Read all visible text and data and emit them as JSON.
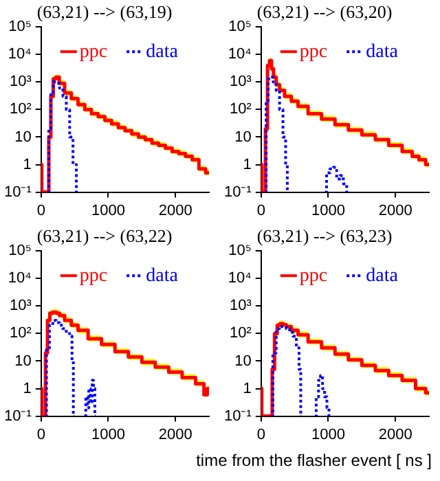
{
  "chart_data": [
    {
      "type": "step",
      "title": "(63,21) --> (63,19)",
      "xlim": [
        0,
        2500
      ],
      "xticks": [
        0,
        1000,
        2000
      ],
      "ylim": [
        0.1,
        100000
      ],
      "log": true,
      "yticks": [
        {
          "value": 0.1,
          "label": "10⁻¹"
        },
        {
          "value": 1,
          "label": "1"
        },
        {
          "value": 10,
          "label": "10"
        },
        {
          "value": 100,
          "label": "10²"
        },
        {
          "value": 1000,
          "label": "10³"
        },
        {
          "value": 10000,
          "label": "10⁴"
        },
        {
          "value": 100000,
          "label": "10⁵"
        }
      ],
      "grid": false,
      "legend": "top right",
      "marker": "none",
      "series": [
        {
          "name": "ppc",
          "color": "#ff0000",
          "line_style": "solid",
          "x": [
            0,
            20,
            100,
            130,
            160,
            200,
            240,
            300,
            400,
            500,
            600,
            700,
            800,
            900,
            1000,
            1100,
            1200,
            1300,
            1400,
            1500,
            1600,
            1700,
            1800,
            1900,
            2000,
            2100,
            2200,
            2300,
            2400,
            2500
          ],
          "values": [
            1,
            0.1,
            0.1,
            10,
            300,
            1300,
            1500,
            900,
            400,
            250,
            150,
            100,
            70,
            55,
            40,
            30,
            22,
            17,
            13,
            10,
            8,
            6,
            5,
            4,
            3,
            2.5,
            2,
            1.5,
            0.7,
            0.5
          ],
          "upper": [
            1,
            0.1,
            0.1,
            13,
            400,
            1700,
            1900,
            1200,
            520,
            330,
            200,
            130,
            90,
            70,
            52,
            40,
            29,
            22,
            17,
            13,
            10,
            8,
            6.5,
            5,
            4,
            3.3,
            2.6,
            2,
            0.9,
            0.7
          ],
          "lower": [
            1,
            0.1,
            0.1,
            8,
            240,
            1000,
            1200,
            720,
            320,
            200,
            120,
            80,
            56,
            44,
            32,
            24,
            18,
            14,
            10,
            8,
            6.4,
            4.8,
            4,
            3.2,
            2.4,
            2,
            1.6,
            1.2,
            0.56,
            0.4
          ]
        },
        {
          "name": "data",
          "color": "#0000ff",
          "line_style": "dotted",
          "x": [
            100,
            130,
            160,
            200,
            250,
            300,
            350,
            400,
            450,
            500,
            550
          ],
          "values": [
            0.1,
            20,
            400,
            1000,
            900,
            600,
            300,
            100,
            10,
            1,
            0.1
          ]
        }
      ]
    },
    {
      "type": "step",
      "title": "(63,21) --> (63,20)",
      "xlim": [
        0,
        2500
      ],
      "xticks": [
        0,
        1000,
        2000
      ],
      "ylim": [
        0.1,
        100000
      ],
      "log": true,
      "yticks": [
        {
          "value": 0.1,
          "label": "10⁻¹"
        },
        {
          "value": 1,
          "label": "1"
        },
        {
          "value": 10,
          "label": "10"
        },
        {
          "value": 100,
          "label": "10²"
        },
        {
          "value": 1000,
          "label": "10³"
        },
        {
          "value": 10000,
          "label": "10⁴"
        },
        {
          "value": 100000,
          "label": "10⁵"
        }
      ],
      "grid": false,
      "legend": "top right",
      "marker": "none",
      "series": [
        {
          "name": "ppc",
          "color": "#ff0000",
          "line_style": "solid",
          "x": [
            0,
            20,
            50,
            80,
            110,
            140,
            170,
            200,
            250,
            300,
            400,
            500,
            600,
            800,
            1000,
            1200,
            1400,
            1600,
            1800,
            2000,
            2200,
            2300,
            2400,
            2500
          ],
          "values": [
            1,
            0.1,
            0.1,
            20,
            4000,
            6000,
            3000,
            1500,
            800,
            500,
            300,
            200,
            130,
            70,
            45,
            28,
            18,
            12,
            8,
            5,
            3,
            2,
            1.5,
            1
          ],
          "upper": [
            1,
            0.1,
            0.1,
            26,
            5200,
            7800,
            3900,
            2000,
            1050,
            650,
            400,
            260,
            170,
            90,
            60,
            36,
            23,
            16,
            10,
            6.5,
            4,
            2.6,
            2,
            1.3
          ],
          "lower": [
            1,
            0.1,
            0.1,
            16,
            3200,
            4800,
            2400,
            1200,
            640,
            400,
            240,
            160,
            100,
            56,
            36,
            22,
            14,
            10,
            6.4,
            4,
            2.4,
            1.6,
            1.2,
            0.8
          ]
        },
        {
          "name": "data",
          "color": "#0000ff",
          "line_style": "dotted",
          "x": [
            60,
            90,
            120,
            160,
            200,
            250,
            300,
            350,
            380,
            400,
            700,
            950,
            1000,
            1050,
            1100,
            1150,
            1200,
            1250,
            1300
          ],
          "values": [
            0.1,
            200,
            1300,
            1500,
            1000,
            500,
            100,
            10,
            1,
            0.1,
            null,
            0.1,
            0.5,
            0.7,
            0.8,
            0.3,
            0.4,
            0.2,
            0.1
          ]
        }
      ]
    },
    {
      "type": "step",
      "title": "(63,21) --> (63,22)",
      "xlim": [
        0,
        2500
      ],
      "xticks": [
        0,
        1000,
        2000
      ],
      "ylim": [
        0.1,
        100000
      ],
      "log": true,
      "yticks": [
        {
          "value": 0.1,
          "label": "10⁻¹"
        },
        {
          "value": 1,
          "label": "1"
        },
        {
          "value": 10,
          "label": "10"
        },
        {
          "value": 100,
          "label": "10²"
        },
        {
          "value": 1000,
          "label": "10³"
        },
        {
          "value": 10000,
          "label": "10⁴"
        },
        {
          "value": 100000,
          "label": "10⁵"
        }
      ],
      "grid": false,
      "legend": "top right",
      "marker": "none",
      "series": [
        {
          "name": "ppc",
          "color": "#ff0000",
          "line_style": "solid",
          "x": [
            0,
            20,
            50,
            80,
            110,
            150,
            200,
            250,
            300,
            400,
            500,
            600,
            800,
            1000,
            1200,
            1400,
            1600,
            1800,
            2000,
            2200,
            2400,
            2450,
            2500
          ],
          "values": [
            1,
            0.1,
            0.1,
            20,
            300,
            550,
            600,
            550,
            450,
            300,
            200,
            130,
            65,
            40,
            22,
            14,
            9,
            6,
            4,
            2.5,
            1.5,
            0.6,
            1
          ],
          "upper": [
            1,
            0.1,
            0.1,
            26,
            400,
            720,
            800,
            720,
            590,
            400,
            260,
            170,
            85,
            52,
            29,
            18,
            12,
            8,
            5.2,
            3.3,
            2,
            0.8,
            1.3
          ],
          "lower": [
            1,
            0.1,
            0.1,
            16,
            240,
            440,
            480,
            440,
            360,
            240,
            160,
            100,
            52,
            32,
            18,
            11,
            7,
            4.8,
            3.2,
            2,
            1.2,
            0.5,
            0.8
          ]
        },
        {
          "name": "data",
          "color": "#0000ff",
          "line_style": "dotted",
          "x": [
            60,
            100,
            150,
            200,
            250,
            300,
            350,
            400,
            450,
            470,
            490,
            600,
            650,
            680,
            700,
            720,
            750,
            770,
            790,
            810
          ],
          "values": [
            0.1,
            30,
            200,
            300,
            250,
            200,
            150,
            100,
            80,
            10,
            0.1,
            null,
            0.1,
            0.5,
            0.2,
            1,
            0.3,
            2,
            1,
            0.1
          ]
        }
      ]
    },
    {
      "type": "step",
      "title": "(63,21) --> (63,23)",
      "xlabel": "time from the flasher event [ ns ]",
      "xlim": [
        0,
        2500
      ],
      "xticks": [
        0,
        1000,
        2000
      ],
      "ylim": [
        0.1,
        100000
      ],
      "log": true,
      "yticks": [
        {
          "value": 0.1,
          "label": "10⁻¹"
        },
        {
          "value": 1,
          "label": "1"
        },
        {
          "value": 10,
          "label": "10"
        },
        {
          "value": 100,
          "label": "10²"
        },
        {
          "value": 1000,
          "label": "10³"
        },
        {
          "value": 10000,
          "label": "10⁴"
        },
        {
          "value": 100000,
          "label": "10⁵"
        }
      ],
      "grid": false,
      "legend": "top right",
      "marker": "none",
      "series": [
        {
          "name": "ppc",
          "color": "#ff0000",
          "line_style": "solid",
          "x": [
            0,
            20,
            150,
            180,
            220,
            260,
            300,
            350,
            400,
            500,
            600,
            800,
            1000,
            1200,
            1400,
            1600,
            1800,
            2000,
            2200,
            2400,
            2500
          ],
          "values": [
            1,
            0.1,
            0.1,
            5,
            100,
            200,
            230,
            210,
            180,
            130,
            90,
            50,
            30,
            18,
            11,
            7,
            4.5,
            3,
            2,
            1,
            0.7
          ],
          "upper": [
            1,
            0.1,
            0.1,
            6.5,
            130,
            260,
            300,
            270,
            230,
            170,
            120,
            65,
            39,
            23,
            14,
            9,
            6,
            4,
            2.6,
            1.3,
            0.9
          ],
          "lower": [
            1,
            0.1,
            0.1,
            4,
            80,
            160,
            180,
            170,
            140,
            100,
            72,
            40,
            24,
            14,
            9,
            5.6,
            3.6,
            2.4,
            1.6,
            0.8,
            0.56
          ]
        },
        {
          "name": "data",
          "color": "#0000ff",
          "line_style": "dotted",
          "x": [
            150,
            200,
            250,
            300,
            350,
            400,
            450,
            500,
            550,
            580,
            600,
            750,
            800,
            840,
            870,
            900,
            930,
            960,
            1000,
            1020
          ],
          "values": [
            0.1,
            20,
            150,
            180,
            180,
            150,
            110,
            80,
            30,
            5,
            0.1,
            null,
            0.1,
            0.5,
            2,
            3,
            1,
            0.5,
            0.2,
            0.1
          ]
        }
      ]
    }
  ]
}
